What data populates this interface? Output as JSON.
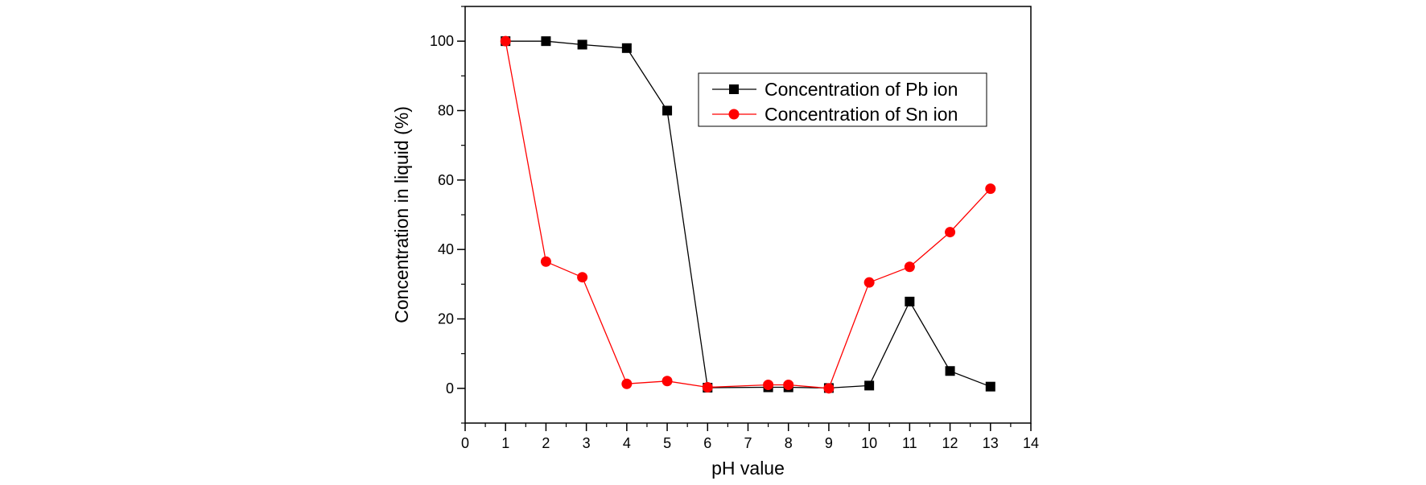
{
  "chart_data": {
    "type": "line",
    "xlabel": "pH value",
    "ylabel": "Concentration in liquid (%)",
    "xlim": [
      0,
      14
    ],
    "ylim": [
      -10,
      110
    ],
    "xticks": [
      0,
      1,
      2,
      3,
      4,
      5,
      6,
      7,
      8,
      9,
      10,
      11,
      12,
      13,
      14
    ],
    "yticks": [
      0,
      20,
      40,
      60,
      80,
      100
    ],
    "legend_position": "top-right",
    "grid": false,
    "series": [
      {
        "name": "Concentration of Pb ion",
        "color": "#000000",
        "marker": "square",
        "x": [
          1,
          2,
          2.9,
          4,
          5,
          6,
          7.5,
          8,
          9,
          10,
          11,
          12,
          13
        ],
        "y": [
          100,
          100,
          99,
          98,
          80,
          0.2,
          0.3,
          0.3,
          0.1,
          0.8,
          25,
          5,
          0.5
        ]
      },
      {
        "name": "Concentration of Sn ion",
        "color": "#ff0000",
        "marker": "circle",
        "x": [
          1,
          2,
          2.9,
          4,
          5,
          6,
          7.5,
          8,
          9,
          10,
          11,
          12,
          13
        ],
        "y": [
          100,
          36.5,
          32,
          1.3,
          2.1,
          0.3,
          1,
          1,
          0,
          30.5,
          35,
          45,
          57.5
        ]
      }
    ]
  }
}
